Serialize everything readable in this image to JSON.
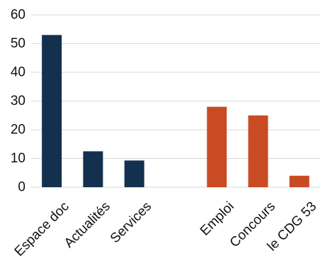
{
  "chart_data": {
    "type": "bar",
    "title": "",
    "xlabel": "",
    "ylabel": "",
    "ylim": [
      0,
      60
    ],
    "yticks": [
      0,
      10,
      20,
      30,
      40,
      50,
      60
    ],
    "grid": true,
    "legend": "none",
    "categories": [
      "Espace doc",
      "Actualités",
      "Services",
      "",
      "Emploi",
      "Concours",
      "le CDG 53"
    ],
    "values": [
      53,
      12.5,
      9.3,
      null,
      28,
      25,
      4
    ],
    "bar_colors": [
      "#14304f",
      "#14304f",
      "#14304f",
      null,
      "#c84b24",
      "#c84b24",
      "#c84b24"
    ]
  }
}
